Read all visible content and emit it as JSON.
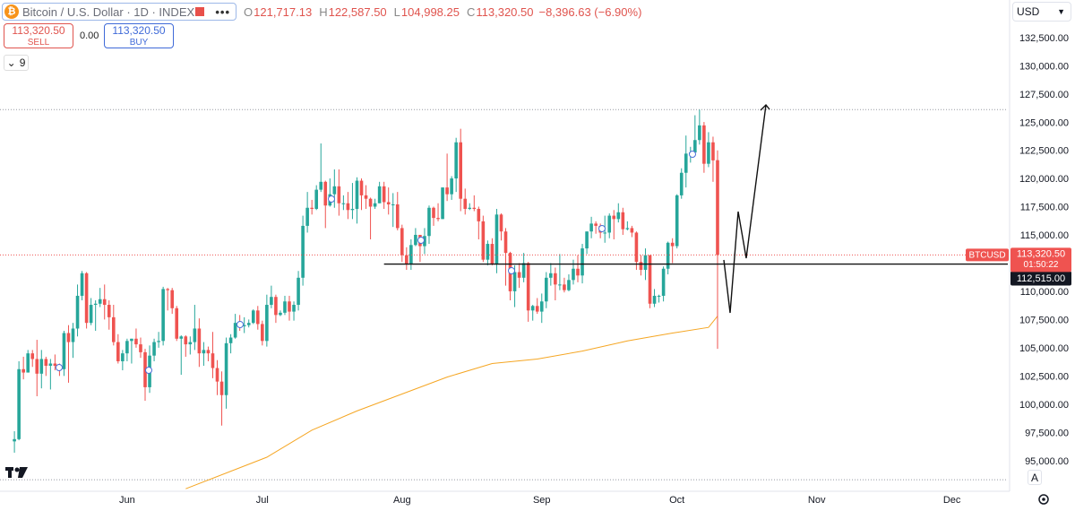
{
  "header": {
    "symbol": "Bitcoin / U.S. Dollar · 1D · INDEX",
    "fields": [
      {
        "key": "O",
        "value": "121,717.13"
      },
      {
        "key": "H",
        "value": "122,587.50"
      },
      {
        "key": "L",
        "value": "104,998.25"
      },
      {
        "key": "C",
        "value": "113,320.50"
      }
    ],
    "change": "−8,396.63 (−6.90%)"
  },
  "trade": {
    "sell_price": "113,320.50",
    "sell": "SELL",
    "spread": "0.00",
    "buy_price": "113,320.50",
    "buy": "BUY"
  },
  "indicator_count": "9",
  "currency": "USD",
  "price_tag": {
    "symbol": "BTCUSD",
    "price": "113,320.50",
    "countdown": "01:50:22"
  },
  "buttons": {
    "auto": "A"
  },
  "chart_data": {
    "type": "candlestick",
    "x": [
      -25,
      -24,
      -23,
      -22,
      -21,
      -20,
      -19,
      -18,
      -17,
      -16,
      -15,
      -14,
      -13,
      -12,
      -11,
      -10,
      -9,
      -8,
      -7,
      -6,
      -5,
      -4,
      -3,
      -2,
      -1,
      0,
      1,
      2,
      3,
      4,
      5,
      6,
      7,
      8,
      9,
      10,
      11,
      12,
      13,
      14,
      15,
      16,
      17,
      18,
      19,
      20,
      21,
      22,
      23,
      24,
      25,
      26,
      27,
      28,
      29,
      30,
      31,
      32,
      33,
      34,
      35,
      36,
      37,
      38,
      39,
      40,
      41,
      42,
      43,
      44,
      45,
      46,
      47,
      48,
      49,
      50,
      51,
      52,
      53,
      54,
      55,
      56,
      57,
      58,
      59,
      60,
      61,
      62,
      63,
      64,
      65,
      66,
      67,
      68,
      69,
      70,
      71,
      72,
      73,
      74,
      75,
      76,
      77,
      78,
      79,
      80,
      81,
      82,
      83,
      84,
      85,
      86,
      87,
      88,
      89,
      90,
      91,
      92,
      93,
      94,
      95,
      96,
      97,
      98,
      99,
      100,
      101,
      102,
      103,
      104,
      105,
      106,
      107,
      108,
      109,
      110,
      111,
      112,
      113,
      114,
      115,
      116,
      117,
      118,
      119,
      120,
      121,
      122,
      123,
      124,
      125,
      126,
      127,
      128,
      129,
      130,
      131
    ],
    "open": [
      96800,
      97000,
      103200,
      102900,
      104600,
      104100,
      102800,
      104100,
      103500,
      103700,
      103500,
      103200,
      106400,
      105600,
      106800,
      109700,
      111700,
      107300,
      108900,
      109000,
      109400,
      108900,
      107800,
      105600,
      103900,
      104600,
      105700,
      105900,
      105400,
      104700,
      101600,
      104400,
      105600,
      105700,
      110300,
      110200,
      108600,
      105900,
      106100,
      105400,
      105600,
      106800,
      104600,
      104900,
      104600,
      103300,
      102100,
      100900,
      105500,
      106000,
      107300,
      107000,
      107100,
      107300,
      108400,
      107200,
      105700,
      108900,
      109600,
      108000,
      108200,
      109200,
      108300,
      108900,
      111300,
      115900,
      117500,
      117400,
      119100,
      119800,
      117700,
      118700,
      119400,
      117900,
      117900,
      117300,
      117400,
      119900,
      118600,
      118300,
      117600,
      117900,
      119400,
      118000,
      117800,
      117800,
      115700,
      113300,
      112500,
      114200,
      115100,
      114100,
      115000,
      117500,
      116600,
      116500,
      119300,
      118700,
      120100,
      123300,
      118300,
      117400,
      117500,
      117400,
      116300,
      112900,
      114300,
      112500,
      116900,
      115400,
      113500,
      110100,
      111800,
      111300,
      112600,
      108400,
      108800,
      108300,
      109200,
      111300,
      111700,
      110700,
      110700,
      110200,
      111100,
      112100,
      111500,
      113900,
      115400,
      116100,
      115900,
      115300,
      115300,
      116800,
      116500,
      117100,
      115600,
      115700,
      115300,
      112700,
      112000,
      113300,
      109000,
      109700,
      109700,
      112100,
      114400,
      114100,
      118600,
      120600,
      122300,
      122400,
      123500,
      124800,
      121400,
      123300,
      121717.13
    ],
    "high": [
      97700,
      103900,
      104300,
      104900,
      104900,
      105800,
      104900,
      104300,
      104100,
      104500,
      103700,
      106600,
      107100,
      107300,
      110700,
      111900,
      111800,
      109500,
      109300,
      110400,
      110700,
      109300,
      108900,
      106300,
      104900,
      105900,
      105900,
      106800,
      106000,
      105000,
      105300,
      105900,
      106500,
      110500,
      110400,
      110400,
      108800,
      106200,
      106200,
      106100,
      108900,
      107700,
      105600,
      105200,
      106500,
      104000,
      103000,
      106000,
      106300,
      108100,
      108000,
      107800,
      107600,
      108500,
      108800,
      107500,
      109800,
      110600,
      109800,
      108400,
      109700,
      109700,
      109200,
      111900,
      116800,
      118900,
      118200,
      119500,
      123200,
      119900,
      120100,
      120900,
      120900,
      118600,
      118900,
      119700,
      120200,
      120100,
      119500,
      118400,
      118300,
      119800,
      119800,
      119300,
      118800,
      118900,
      116000,
      114000,
      114700,
      115700,
      115100,
      115700,
      117700,
      117600,
      117900,
      119300,
      122300,
      120300,
      123700,
      124500,
      119200,
      117900,
      118600,
      117600,
      116800,
      114600,
      114800,
      117400,
      117000,
      115700,
      113600,
      112400,
      112600,
      113500,
      112700,
      108900,
      109500,
      109900,
      111800,
      112600,
      112200,
      113400,
      111300,
      111600,
      112900,
      113300,
      114300,
      115400,
      116700,
      116300,
      116100,
      116800,
      117000,
      117300,
      117900,
      117500,
      116300,
      115900,
      115400,
      113300,
      113900,
      113300,
      110300,
      109800,
      112300,
      114500,
      114800,
      118700,
      121000,
      123900,
      122900,
      125700,
      126200,
      125100,
      124200,
      123800,
      122587.5
    ],
    "low": [
      95800,
      96900,
      102300,
      102900,
      103400,
      100800,
      101500,
      102600,
      101400,
      103100,
      102600,
      102600,
      102000,
      104200,
      106100,
      109300,
      106800,
      107100,
      106600,
      108700,
      107600,
      106700,
      105300,
      103700,
      103100,
      103900,
      103700,
      105100,
      104200,
      100400,
      101100,
      103900,
      105100,
      105300,
      108400,
      108100,
      105700,
      102700,
      104300,
      104500,
      104900,
      103400,
      103500,
      103900,
      102400,
      100900,
      98200,
      99700,
      104600,
      105900,
      106600,
      106400,
      106900,
      107200,
      106700,
      105300,
      105200,
      108600,
      107300,
      107900,
      108000,
      107500,
      107500,
      108400,
      110600,
      115300,
      116900,
      117300,
      118900,
      115700,
      117600,
      117500,
      116800,
      117300,
      116500,
      116500,
      116100,
      117300,
      117400,
      114700,
      117400,
      117900,
      117400,
      116900,
      115800,
      115500,
      112700,
      112000,
      112000,
      114100,
      112700,
      113400,
      114300,
      115900,
      116300,
      116500,
      118100,
      118200,
      118900,
      117200,
      116900,
      117300,
      117200,
      114700,
      112700,
      112400,
      112400,
      111700,
      114600,
      110600,
      109300,
      108700,
      110400,
      110900,
      107400,
      107500,
      108100,
      107300,
      108600,
      110600,
      109300,
      110200,
      110000,
      110100,
      110700,
      110900,
      110800,
      113400,
      114800,
      115200,
      114800,
      114400,
      114800,
      114700,
      116200,
      115100,
      115500,
      114900,
      112000,
      111500,
      111100,
      108600,
      108700,
      109100,
      109200,
      111600,
      112600,
      113900,
      118300,
      119300,
      121500,
      122100,
      123100,
      120600,
      121100,
      119800,
      104998.25
    ],
    "close": [
      97000,
      103200,
      102900,
      104600,
      104100,
      102800,
      104100,
      103500,
      103700,
      103500,
      103200,
      106400,
      105600,
      106800,
      109700,
      111700,
      107300,
      108900,
      109000,
      109400,
      108900,
      107800,
      105600,
      103900,
      104600,
      105700,
      105900,
      105400,
      104700,
      101600,
      104400,
      105600,
      105700,
      110300,
      110200,
      108600,
      105900,
      106100,
      105400,
      105600,
      106800,
      104600,
      104900,
      104600,
      103300,
      102100,
      100900,
      105500,
      106000,
      107300,
      107000,
      107100,
      107300,
      108400,
      107200,
      105700,
      108900,
      109600,
      108000,
      108200,
      109200,
      108300,
      108900,
      111300,
      115900,
      117500,
      117400,
      119100,
      119800,
      117700,
      118700,
      119400,
      117900,
      117900,
      117300,
      117400,
      119900,
      118600,
      118300,
      117600,
      117900,
      119400,
      118000,
      117800,
      117800,
      115700,
      113300,
      112500,
      114200,
      115100,
      114100,
      115000,
      117500,
      116600,
      116500,
      119300,
      118700,
      120100,
      123300,
      118300,
      117400,
      117500,
      117400,
      116300,
      112900,
      114300,
      112500,
      116900,
      115400,
      113500,
      110100,
      111800,
      111300,
      112600,
      108400,
      108800,
      108300,
      109200,
      111300,
      111700,
      110700,
      110700,
      110200,
      111100,
      112100,
      111500,
      113900,
      115400,
      116100,
      115900,
      115300,
      115300,
      116800,
      116500,
      117100,
      115600,
      115700,
      115300,
      112700,
      112000,
      113300,
      109000,
      109700,
      109700,
      112100,
      114400,
      114100,
      118600,
      120600,
      122300,
      122400,
      123500,
      124800,
      121400,
      123300,
      121700,
      113320.5
    ],
    "up_color": "#26a69a",
    "down_color": "#ef5350",
    "xlim": [
      -28.2,
      195.4
    ],
    "xticks": [
      {
        "value": 0,
        "label": "Jun"
      },
      {
        "value": 30,
        "label": "Jul"
      },
      {
        "value": 61,
        "label": "Aug"
      },
      {
        "value": 92,
        "label": "Sep"
      },
      {
        "value": 122,
        "label": "Oct"
      },
      {
        "value": 153,
        "label": "Nov"
      },
      {
        "value": 183,
        "label": "Dec"
      }
    ],
    "ylim": [
      92380,
      135910
    ],
    "yticks": [
      {
        "value": 95000,
        "label": "95,000.00"
      },
      {
        "value": 97500,
        "label": "97,500.00"
      },
      {
        "value": 100000,
        "label": "100,000.00"
      },
      {
        "value": 102500,
        "label": "102,500.00"
      },
      {
        "value": 105000,
        "label": "105,000.00"
      },
      {
        "value": 107500,
        "label": "107,500.00"
      },
      {
        "value": 110000,
        "label": "110,000.00"
      },
      {
        "value": 115000,
        "label": "115,000.00"
      },
      {
        "value": 117500,
        "label": "117,500.00"
      },
      {
        "value": 120000,
        "label": "120,000.00"
      },
      {
        "value": 122500,
        "label": "122,500.00"
      },
      {
        "value": 125000,
        "label": "125,000.00"
      },
      {
        "value": 127500,
        "label": "127,500.00"
      },
      {
        "value": 130000,
        "label": "130,000.00"
      },
      {
        "value": 132500,
        "label": "132,500.00"
      }
    ],
    "moving_average": {
      "color": "#f5a623",
      "x": [
        13,
        31,
        41,
        51,
        61,
        71,
        81,
        91,
        101,
        111,
        121,
        129,
        131
      ],
      "values": [
        92600,
        95400,
        97800,
        99500,
        101000,
        102500,
        103700,
        104100,
        104800,
        105700,
        106400,
        106900,
        107900
      ]
    },
    "horizontal_line": {
      "value": 112515,
      "label": "112,515.00",
      "x": 57
    },
    "dotted_levels": [
      126200,
      93400
    ]
  }
}
